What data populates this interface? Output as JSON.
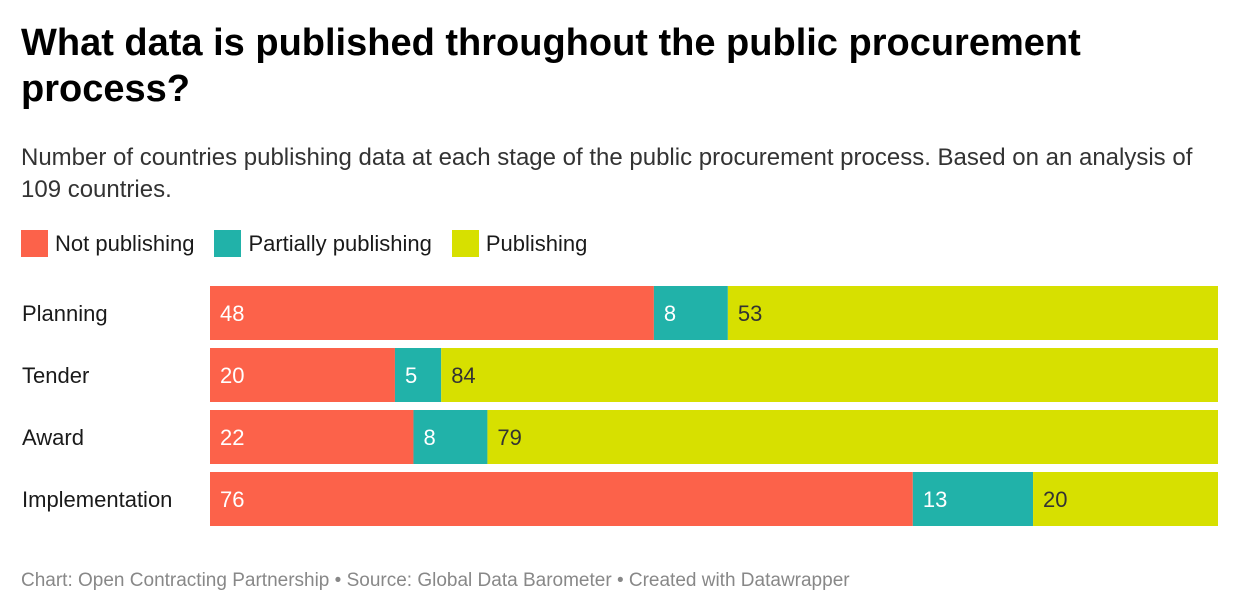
{
  "title": "What data is published throughout the public procurement process?",
  "subtitle": "Number of countries publishing data at each stage of the public procurement process. Based on an analysis of 109 countries.",
  "legend": [
    {
      "label": "Not publishing",
      "color": "#fc624a"
    },
    {
      "label": "Partially publishing",
      "color": "#21b2a9"
    },
    {
      "label": "Publishing",
      "color": "#d7e000"
    }
  ],
  "footer": "Chart: Open Contracting Partnership • Source: Global Data Barometer • Created with Datawrapper",
  "chart_data": {
    "type": "bar",
    "orientation": "horizontal",
    "stacked": true,
    "title": "What data is published throughout the public procurement process?",
    "categories": [
      "Planning",
      "Tender",
      "Award",
      "Implementation"
    ],
    "series": [
      {
        "name": "Not publishing",
        "color": "#fc624a",
        "label_color": "#ffffff",
        "values": [
          48,
          20,
          22,
          76
        ]
      },
      {
        "name": "Partially publishing",
        "color": "#21b2a9",
        "label_color": "#ffffff",
        "values": [
          8,
          5,
          8,
          13
        ]
      },
      {
        "name": "Publishing",
        "color": "#d7e000",
        "label_color": "#333333",
        "values": [
          53,
          84,
          79,
          20
        ]
      }
    ],
    "total": 109,
    "xlim": [
      0,
      109
    ],
    "grid": false,
    "legend_position": "top-left"
  }
}
